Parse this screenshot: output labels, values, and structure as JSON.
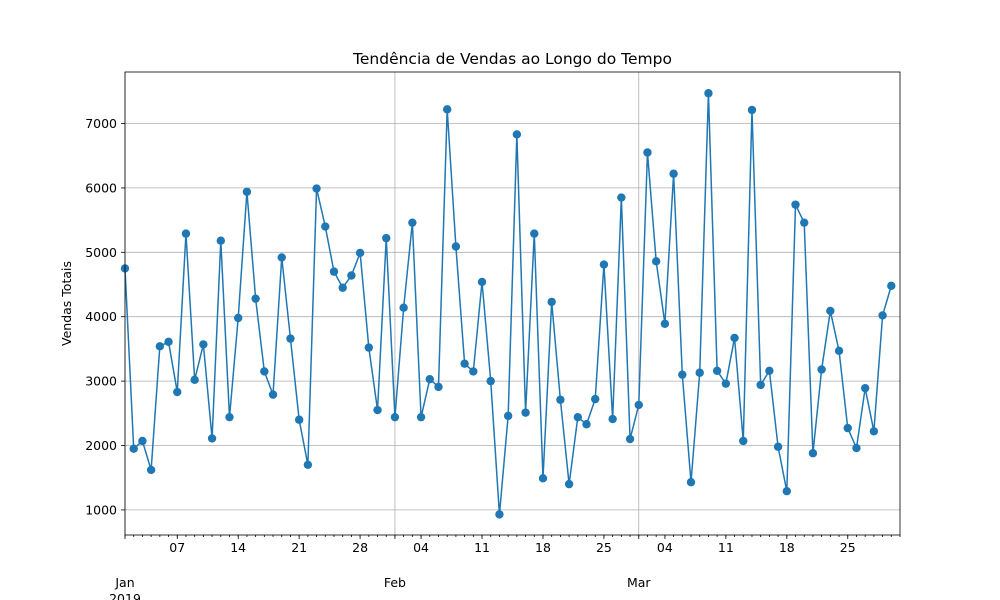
{
  "chart_data": {
    "type": "line",
    "title": "Tendência de Vendas ao Longo do Tempo",
    "xlabel": "",
    "ylabel": "Vendas Totais",
    "grid": true,
    "marker": "circle",
    "color": "#1f77b4",
    "x_range": [
      "2019-01-01",
      "2019-03-31"
    ],
    "ylim": [
      610,
      7800
    ],
    "y_ticks": [
      1000,
      2000,
      3000,
      4000,
      5000,
      6000,
      7000
    ],
    "x_major_ticks": [
      {
        "date": "2019-01-01",
        "label": "Jan",
        "year": "2019"
      },
      {
        "date": "2019-02-01",
        "label": "Feb"
      },
      {
        "date": "2019-03-01",
        "label": "Mar"
      }
    ],
    "x_minor_ticks": [
      {
        "date": "2019-01-07",
        "label": "07"
      },
      {
        "date": "2019-01-14",
        "label": "14"
      },
      {
        "date": "2019-01-21",
        "label": "21"
      },
      {
        "date": "2019-01-28",
        "label": "28"
      },
      {
        "date": "2019-02-04",
        "label": "04"
      },
      {
        "date": "2019-02-11",
        "label": "11"
      },
      {
        "date": "2019-02-18",
        "label": "18"
      },
      {
        "date": "2019-02-25",
        "label": "25"
      },
      {
        "date": "2019-03-04",
        "label": "04"
      },
      {
        "date": "2019-03-11",
        "label": "11"
      },
      {
        "date": "2019-03-18",
        "label": "18"
      },
      {
        "date": "2019-03-25",
        "label": "25"
      }
    ],
    "series": [
      {
        "start_date": "2019-01-01",
        "values": [
          4750,
          1950,
          2070,
          1620,
          3540,
          3610,
          2830,
          5290,
          3020,
          3570,
          2110,
          5180,
          2440,
          3980,
          5940,
          4280,
          3150,
          2790,
          4920,
          3660,
          2400,
          1700,
          5990,
          5400,
          4700,
          4450,
          4640,
          4990,
          3520,
          2550,
          5220,
          2440,
          4140,
          5460,
          2440,
          3030,
          2910,
          7220,
          5090,
          3270,
          3150,
          4540,
          3000,
          930,
          2460,
          6830,
          2510,
          5290,
          1490,
          4230,
          2710,
          1400,
          2440,
          2330,
          2720,
          4810,
          2410,
          5850,
          2100,
          2630,
          6550,
          4860,
          3890,
          6220,
          3100,
          1430,
          3130,
          7470,
          3160,
          2960,
          3670,
          2070,
          7210,
          2940,
          3160,
          1980,
          1290,
          5740,
          5460,
          1880,
          3180,
          4090,
          3470,
          2270,
          1960,
          2890,
          2220,
          4020,
          4480
        ]
      }
    ]
  }
}
